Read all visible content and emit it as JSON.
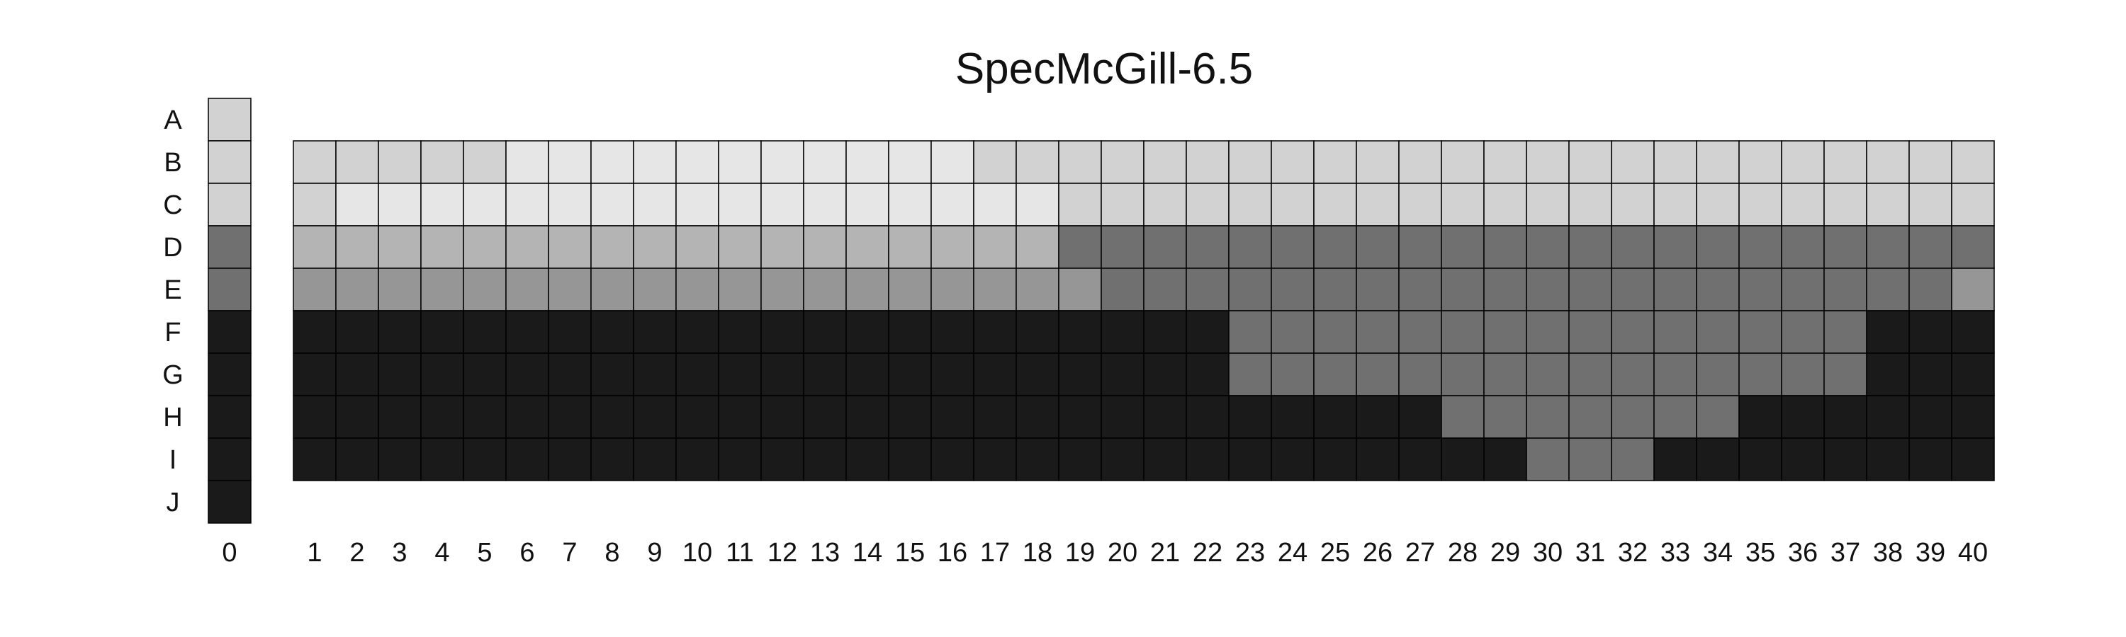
{
  "chart_data": {
    "type": "heatmap",
    "title": "SpecMcGill-6.5",
    "row_labels": [
      "A",
      "B",
      "C",
      "D",
      "E",
      "F",
      "G",
      "H",
      "I",
      "J"
    ],
    "column0_label": "0",
    "column0_values": [
      "#d2d2d2",
      "#d2d2d2",
      "#d2d2d2",
      "#707070",
      "#707070",
      "#1a1a1a",
      "#1a1a1a",
      "#1a1a1a",
      "#1a1a1a",
      "#1a1a1a"
    ],
    "column_labels": [
      "1",
      "2",
      "3",
      "4",
      "5",
      "6",
      "7",
      "8",
      "9",
      "10",
      "11",
      "12",
      "13",
      "14",
      "15",
      "16",
      "17",
      "18",
      "19",
      "20",
      "21",
      "22",
      "23",
      "24",
      "25",
      "26",
      "27",
      "28",
      "29",
      "30",
      "31",
      "32",
      "33",
      "34",
      "35",
      "36",
      "37",
      "38",
      "39",
      "40"
    ],
    "grid_rows": [
      "B",
      "C",
      "D",
      "E",
      "F",
      "G",
      "H",
      "I"
    ],
    "grid_values": [
      [
        "#d2d2d2",
        "#d2d2d2",
        "#d2d2d2",
        "#d2d2d2",
        "#d2d2d2",
        "#e6e6e6",
        "#e6e6e6",
        "#e6e6e6",
        "#e6e6e6",
        "#e6e6e6",
        "#e6e6e6",
        "#e6e6e6",
        "#e6e6e6",
        "#e6e6e6",
        "#e6e6e6",
        "#e6e6e6",
        "#d2d2d2",
        "#d2d2d2",
        "#d2d2d2",
        "#d2d2d2",
        "#d2d2d2",
        "#d2d2d2",
        "#d2d2d2",
        "#d2d2d2",
        "#d2d2d2",
        "#d2d2d2",
        "#d2d2d2",
        "#d2d2d2",
        "#d2d2d2",
        "#d2d2d2",
        "#d2d2d2",
        "#d2d2d2",
        "#d2d2d2",
        "#d2d2d2",
        "#d2d2d2",
        "#d2d2d2",
        "#d2d2d2",
        "#d2d2d2",
        "#d2d2d2",
        "#d2d2d2"
      ],
      [
        "#d2d2d2",
        "#e6e6e6",
        "#e6e6e6",
        "#e6e6e6",
        "#e6e6e6",
        "#e6e6e6",
        "#e6e6e6",
        "#e6e6e6",
        "#e6e6e6",
        "#e6e6e6",
        "#e6e6e6",
        "#e6e6e6",
        "#e6e6e6",
        "#e6e6e6",
        "#e6e6e6",
        "#e6e6e6",
        "#e6e6e6",
        "#e6e6e6",
        "#d2d2d2",
        "#d2d2d2",
        "#d2d2d2",
        "#d2d2d2",
        "#d2d2d2",
        "#d2d2d2",
        "#d2d2d2",
        "#d2d2d2",
        "#d2d2d2",
        "#d2d2d2",
        "#d2d2d2",
        "#d2d2d2",
        "#d2d2d2",
        "#d2d2d2",
        "#d2d2d2",
        "#d2d2d2",
        "#d2d2d2",
        "#d2d2d2",
        "#d2d2d2",
        "#d2d2d2",
        "#d2d2d2",
        "#d2d2d2"
      ],
      [
        "#b4b4b4",
        "#b4b4b4",
        "#b4b4b4",
        "#b4b4b4",
        "#b4b4b4",
        "#b4b4b4",
        "#b4b4b4",
        "#b4b4b4",
        "#b4b4b4",
        "#b4b4b4",
        "#b4b4b4",
        "#b4b4b4",
        "#b4b4b4",
        "#b4b4b4",
        "#b4b4b4",
        "#b4b4b4",
        "#b4b4b4",
        "#b4b4b4",
        "#707070",
        "#707070",
        "#707070",
        "#707070",
        "#707070",
        "#707070",
        "#707070",
        "#707070",
        "#707070",
        "#707070",
        "#707070",
        "#707070",
        "#707070",
        "#707070",
        "#707070",
        "#707070",
        "#707070",
        "#707070",
        "#707070",
        "#707070",
        "#707070",
        "#707070"
      ],
      [
        "#969696",
        "#969696",
        "#969696",
        "#969696",
        "#969696",
        "#969696",
        "#969696",
        "#969696",
        "#969696",
        "#969696",
        "#969696",
        "#969696",
        "#969696",
        "#969696",
        "#969696",
        "#969696",
        "#969696",
        "#969696",
        "#969696",
        "#707070",
        "#707070",
        "#707070",
        "#707070",
        "#707070",
        "#707070",
        "#707070",
        "#707070",
        "#707070",
        "#707070",
        "#707070",
        "#707070",
        "#707070",
        "#707070",
        "#707070",
        "#707070",
        "#707070",
        "#707070",
        "#707070",
        "#707070",
        "#969696"
      ],
      [
        "#1a1a1a",
        "#1a1a1a",
        "#1a1a1a",
        "#1a1a1a",
        "#1a1a1a",
        "#1a1a1a",
        "#1a1a1a",
        "#1a1a1a",
        "#1a1a1a",
        "#1a1a1a",
        "#1a1a1a",
        "#1a1a1a",
        "#1a1a1a",
        "#1a1a1a",
        "#1a1a1a",
        "#1a1a1a",
        "#1a1a1a",
        "#1a1a1a",
        "#1a1a1a",
        "#1a1a1a",
        "#1a1a1a",
        "#1a1a1a",
        "#707070",
        "#707070",
        "#707070",
        "#707070",
        "#707070",
        "#707070",
        "#707070",
        "#707070",
        "#707070",
        "#707070",
        "#707070",
        "#707070",
        "#707070",
        "#707070",
        "#707070",
        "#1a1a1a",
        "#1a1a1a",
        "#1a1a1a"
      ],
      [
        "#1a1a1a",
        "#1a1a1a",
        "#1a1a1a",
        "#1a1a1a",
        "#1a1a1a",
        "#1a1a1a",
        "#1a1a1a",
        "#1a1a1a",
        "#1a1a1a",
        "#1a1a1a",
        "#1a1a1a",
        "#1a1a1a",
        "#1a1a1a",
        "#1a1a1a",
        "#1a1a1a",
        "#1a1a1a",
        "#1a1a1a",
        "#1a1a1a",
        "#1a1a1a",
        "#1a1a1a",
        "#1a1a1a",
        "#1a1a1a",
        "#707070",
        "#707070",
        "#707070",
        "#707070",
        "#707070",
        "#707070",
        "#707070",
        "#707070",
        "#707070",
        "#707070",
        "#707070",
        "#707070",
        "#707070",
        "#707070",
        "#707070",
        "#1a1a1a",
        "#1a1a1a",
        "#1a1a1a"
      ],
      [
        "#1a1a1a",
        "#1a1a1a",
        "#1a1a1a",
        "#1a1a1a",
        "#1a1a1a",
        "#1a1a1a",
        "#1a1a1a",
        "#1a1a1a",
        "#1a1a1a",
        "#1a1a1a",
        "#1a1a1a",
        "#1a1a1a",
        "#1a1a1a",
        "#1a1a1a",
        "#1a1a1a",
        "#1a1a1a",
        "#1a1a1a",
        "#1a1a1a",
        "#1a1a1a",
        "#1a1a1a",
        "#1a1a1a",
        "#1a1a1a",
        "#1a1a1a",
        "#1a1a1a",
        "#1a1a1a",
        "#1a1a1a",
        "#1a1a1a",
        "#707070",
        "#707070",
        "#707070",
        "#707070",
        "#707070",
        "#707070",
        "#707070",
        "#1a1a1a",
        "#1a1a1a",
        "#1a1a1a",
        "#1a1a1a",
        "#1a1a1a",
        "#1a1a1a"
      ],
      [
        "#1a1a1a",
        "#1a1a1a",
        "#1a1a1a",
        "#1a1a1a",
        "#1a1a1a",
        "#1a1a1a",
        "#1a1a1a",
        "#1a1a1a",
        "#1a1a1a",
        "#1a1a1a",
        "#1a1a1a",
        "#1a1a1a",
        "#1a1a1a",
        "#1a1a1a",
        "#1a1a1a",
        "#1a1a1a",
        "#1a1a1a",
        "#1a1a1a",
        "#1a1a1a",
        "#1a1a1a",
        "#1a1a1a",
        "#1a1a1a",
        "#1a1a1a",
        "#1a1a1a",
        "#1a1a1a",
        "#1a1a1a",
        "#1a1a1a",
        "#1a1a1a",
        "#1a1a1a",
        "#707070",
        "#707070",
        "#707070",
        "#1a1a1a",
        "#1a1a1a",
        "#1a1a1a",
        "#1a1a1a",
        "#1a1a1a",
        "#1a1a1a",
        "#1a1a1a",
        "#1a1a1a"
      ]
    ],
    "grid": true,
    "legend": "none"
  }
}
